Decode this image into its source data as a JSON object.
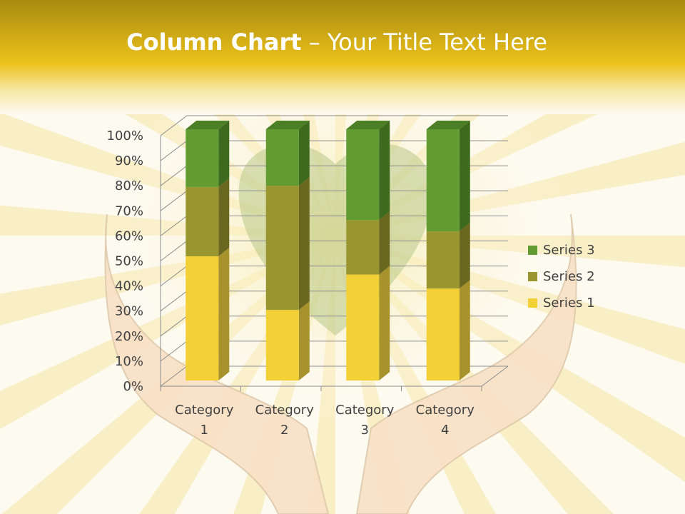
{
  "slide": {
    "title_bold": "Column Chart",
    "title_rest": " – Your Title Text Here"
  },
  "colors": {
    "header": "#e9bf14",
    "background": "#fdfaf0"
  },
  "chart_data": {
    "type": "bar",
    "subtype": "3d-stacked-100-percent",
    "categories": [
      "Category 1",
      "Category 2",
      "Category 3",
      "Category 4"
    ],
    "category_labels": [
      [
        "Category",
        "1"
      ],
      [
        "Category",
        "2"
      ],
      [
        "Category",
        "3"
      ],
      [
        "Category",
        "4"
      ]
    ],
    "series": [
      {
        "name": "Series 1",
        "values": [
          4.3,
          2.5,
          3.5,
          4.5
        ],
        "color": "#f2d036",
        "side": "#a8922c",
        "top": "#d8b82a"
      },
      {
        "name": "Series 2",
        "values": [
          2.4,
          4.4,
          1.8,
          2.8
        ],
        "color": "#99962f",
        "side": "#6a6820",
        "top": "#7f7d26"
      },
      {
        "name": "Series 3",
        "values": [
          2,
          2,
          3,
          5
        ],
        "color": "#639b33",
        "side": "#3e6a1e",
        "top": "#4c7e26"
      }
    ],
    "yticks": [
      "0%",
      "10%",
      "20%",
      "30%",
      "40%",
      "50%",
      "60%",
      "70%",
      "80%",
      "90%",
      "100%"
    ],
    "ylim": [
      0,
      100
    ],
    "grid": true,
    "legend": "right"
  }
}
